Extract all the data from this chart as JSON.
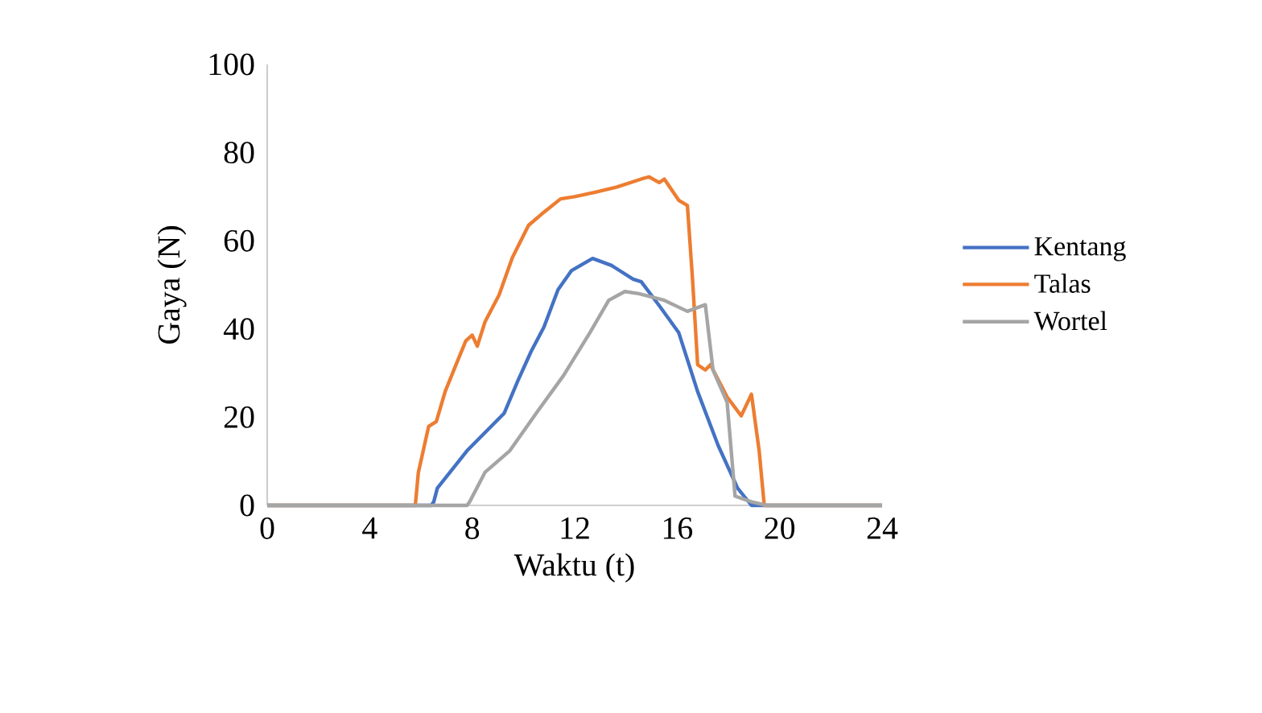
{
  "chart_data": {
    "type": "line",
    "xlabel": "Waktu (t)",
    "ylabel": "Gaya (N)",
    "xlim": [
      0,
      24
    ],
    "xticks": [
      0,
      4,
      8,
      12,
      16,
      20,
      24
    ],
    "ylim": [
      0,
      100
    ],
    "yticks": [
      0,
      20,
      40,
      60,
      80,
      100
    ],
    "grid": false,
    "legend": "right",
    "marker": "none",
    "series": [
      {
        "name": "Kentang",
        "color": "#4472c4",
        "x": [
          0,
          6.4,
          6.5,
          6.64,
          7.8,
          9.25,
          9.78,
          10.3,
          10.8,
          11.35,
          11.87,
          12.7,
          13.44,
          14.28,
          14.6,
          15.3,
          16.06,
          16.8,
          17.6,
          18.36,
          18.9,
          24
        ],
        "values": [
          0,
          0,
          0.8,
          3.9,
          12.4,
          20.9,
          28.2,
          34.9,
          40.4,
          48.9,
          53.2,
          56,
          54.4,
          51.3,
          50.7,
          45.3,
          39.2,
          25.8,
          13.6,
          3.9,
          0,
          0
        ]
      },
      {
        "name": "Talas",
        "color": "#ed7d31",
        "x": [
          0,
          5.78,
          5.9,
          6.3,
          6.6,
          6.95,
          7.37,
          7.75,
          8.0,
          8.2,
          8.5,
          9.05,
          9.57,
          10.2,
          10.7,
          11.45,
          12.0,
          12.8,
          13.65,
          14.6,
          14.9,
          15.3,
          15.5,
          16.06,
          16.4,
          16.6,
          16.8,
          17.1,
          17.3,
          17.95,
          18.5,
          18.9,
          19.2,
          19.4,
          24
        ],
        "values": [
          0,
          0,
          7.5,
          17.9,
          19,
          25.9,
          31.9,
          37.3,
          38.6,
          36.1,
          41.6,
          47.7,
          56.2,
          63.5,
          66,
          69.5,
          70,
          71,
          72.2,
          74,
          74.5,
          73.2,
          74,
          69.2,
          68,
          51.3,
          31.9,
          30.7,
          31.9,
          24.6,
          20.3,
          25.2,
          12.4,
          0,
          0
        ]
      },
      {
        "name": "Wortel",
        "color": "#a5a5a5",
        "x": [
          0,
          7.8,
          7.9,
          8.5,
          9.47,
          10.5,
          11.56,
          12.6,
          13.33,
          13.96,
          14.5,
          15.5,
          16.4,
          17.1,
          17.4,
          17.95,
          18.26,
          18.9,
          19.5,
          24
        ],
        "values": [
          0,
          0,
          0.8,
          7.5,
          12.4,
          20.9,
          29.4,
          39.2,
          46.5,
          48.5,
          48,
          46.5,
          44,
          45.5,
          30.7,
          23.4,
          2.1,
          0.8,
          0,
          0
        ]
      }
    ]
  }
}
